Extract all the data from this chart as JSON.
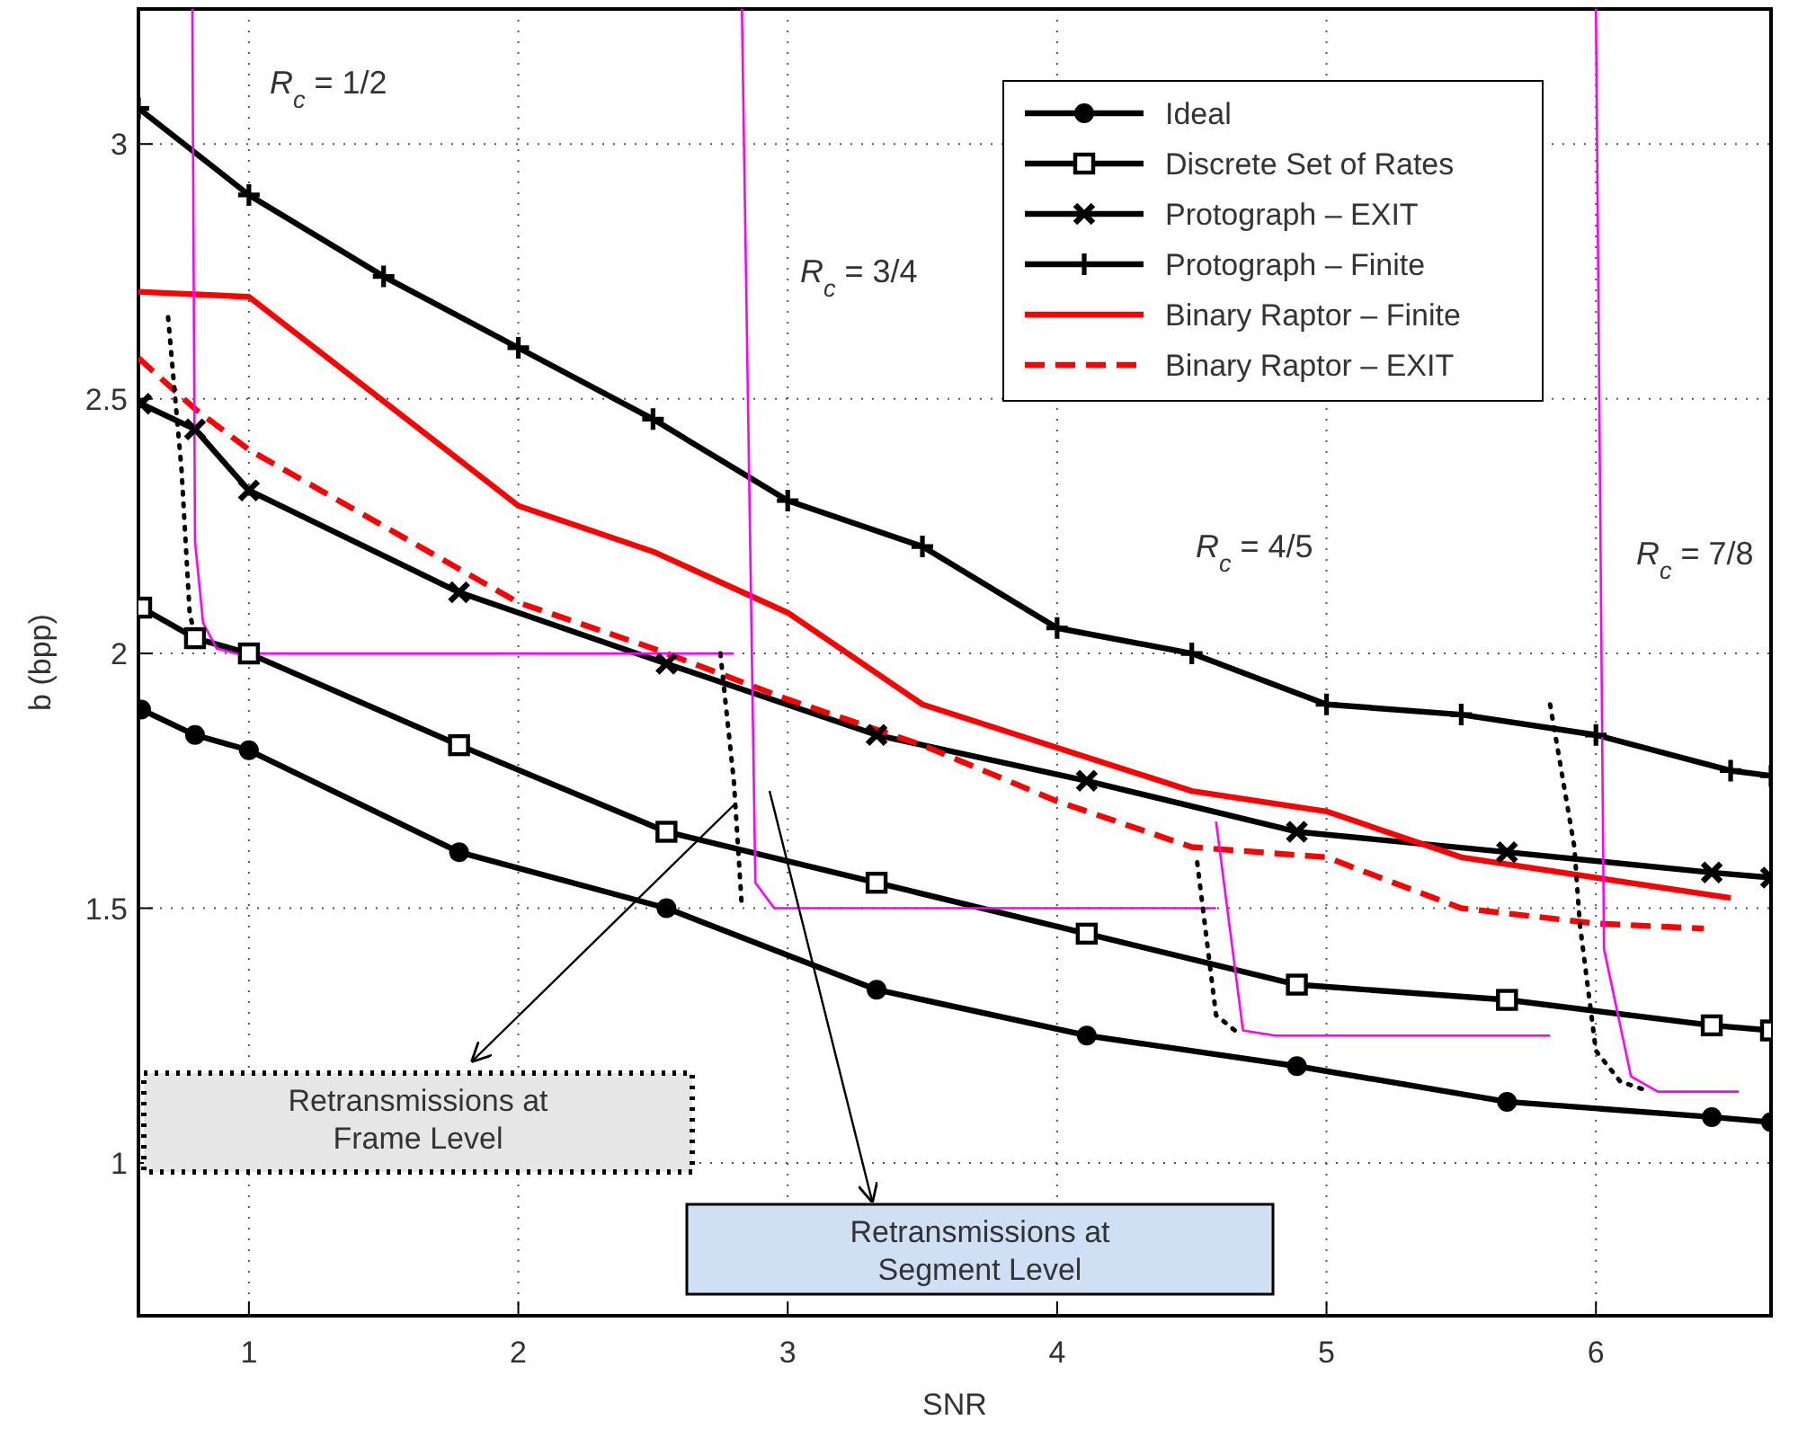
{
  "chart_data": {
    "type": "line",
    "xlabel": "SNR",
    "ylabel": "b (bpp)",
    "xlim": [
      0.59,
      6.65
    ],
    "ylim": [
      0.7,
      3.265
    ],
    "xticks": [
      1,
      2,
      3,
      4,
      5,
      6
    ],
    "yticks": [
      1,
      1.5,
      2,
      2.5,
      3
    ],
    "grid": true,
    "legend": "top right",
    "series": [
      {
        "name": "Ideal",
        "color": "#000000",
        "marker": "circle",
        "line_style": "solid",
        "x": [
          0.6,
          0.8,
          1,
          1.78,
          2.55,
          3.33,
          4.11,
          4.89,
          5.67,
          6.43,
          6.65
        ],
        "values": [
          1.89,
          1.84,
          1.81,
          1.61,
          1.5,
          1.34,
          1.25,
          1.19,
          1.12,
          1.09,
          1.08
        ]
      },
      {
        "name": "Discrete Set of Rates",
        "color": "#000000",
        "marker": "square",
        "line_style": "solid",
        "x": [
          0.6,
          0.8,
          1,
          1.78,
          2.55,
          3.33,
          4.11,
          4.89,
          5.67,
          6.43,
          6.65
        ],
        "values": [
          2.09,
          2.03,
          2.0,
          1.82,
          1.65,
          1.55,
          1.45,
          1.35,
          1.32,
          1.27,
          1.26
        ]
      },
      {
        "name": "Protograph – EXIT",
        "color": "#000000",
        "marker": "cross",
        "line_style": "solid",
        "x": [
          0.6,
          0.8,
          1,
          1.78,
          2.55,
          3.33,
          4.11,
          4.89,
          5.67,
          6.43,
          6.65
        ],
        "values": [
          2.49,
          2.44,
          2.32,
          2.12,
          1.98,
          1.84,
          1.75,
          1.65,
          1.61,
          1.57,
          1.56
        ]
      },
      {
        "name": "Protograph – Finite",
        "color": "#000000",
        "marker": "cross",
        "line_style": "solid",
        "x": [
          0.59,
          1,
          1.5,
          2,
          2.5,
          3,
          3.5,
          4,
          4.5,
          5,
          5.5,
          6,
          6.5,
          6.65
        ],
        "values": [
          3.07,
          2.9,
          2.74,
          2.6,
          2.46,
          2.3,
          2.21,
          2.05,
          2.0,
          1.9,
          1.88,
          1.84,
          1.77,
          1.76
        ]
      },
      {
        "name": "Binary Raptor – Finite",
        "color": "#ff0000",
        "marker": "none",
        "line_style": "solid",
        "x": [
          0.59,
          1,
          2,
          2.5,
          3,
          3.5,
          4.5,
          5,
          5.5,
          6.5
        ],
        "values": [
          2.71,
          2.7,
          2.29,
          2.2,
          2.08,
          1.9,
          1.73,
          1.69,
          1.6,
          1.52
        ]
      },
      {
        "name": "Binary Raptor – EXIT",
        "color": "#ff0000",
        "marker": "none",
        "line_style": "dashed",
        "x": [
          0.59,
          0.8,
          1,
          2,
          2.5,
          3,
          3.5,
          4,
          4.5,
          5,
          5.5,
          6,
          6.4
        ],
        "values": [
          2.58,
          2.48,
          2.4,
          2.1,
          2.01,
          1.91,
          1.82,
          1.71,
          1.62,
          1.6,
          1.5,
          1.47,
          1.46
        ]
      },
      {
        "color": "#ff00ff",
        "marker": "none",
        "line_style": "solid",
        "x": [
          0.79,
          0.8,
          0.83,
          0.88,
          0.95,
          2.8
        ],
        "values": [
          3.265,
          2.22,
          2.06,
          2.01,
          2.0,
          2.0
        ]
      },
      {
        "color": "#ff00ff",
        "marker": "none",
        "line_style": "solid",
        "x": [
          2.83,
          2.88,
          2.95,
          4.59
        ],
        "values": [
          3.265,
          1.55,
          1.5,
          1.5
        ]
      },
      {
        "color": "#ff00ff",
        "marker": "none",
        "line_style": "solid",
        "x": [
          4.59,
          4.69,
          4.81,
          5.83
        ],
        "values": [
          1.67,
          1.26,
          1.25,
          1.25
        ]
      },
      {
        "color": "#ff00ff",
        "marker": "none",
        "line_style": "solid",
        "x": [
          6.0,
          6.03,
          6.13,
          6.23,
          6.53
        ],
        "values": [
          3.265,
          1.42,
          1.17,
          1.14,
          1.14
        ]
      },
      {
        "color": "#000000",
        "marker": "none",
        "line_style": "dotted",
        "x": [
          0.7,
          0.75,
          0.78,
          0.81
        ],
        "values": [
          2.66,
          2.36,
          2.08,
          2.01
        ]
      },
      {
        "color": "#000000",
        "marker": "none",
        "line_style": "dotted",
        "x": [
          2.75,
          2.8,
          2.83
        ],
        "values": [
          2.0,
          1.75,
          1.5
        ]
      },
      {
        "color": "#000000",
        "marker": "none",
        "line_style": "dotted",
        "x": [
          4.52,
          4.59,
          4.66
        ],
        "values": [
          1.59,
          1.29,
          1.26
        ]
      },
      {
        "color": "#000000",
        "marker": "none",
        "line_style": "dotted",
        "x": [
          5.83,
          5.92,
          5.94,
          6.0,
          6.09,
          6.2
        ],
        "values": [
          1.9,
          1.62,
          1.47,
          1.22,
          1.16,
          1.14
        ]
      }
    ],
    "annotations": [
      "R$_{c}$ = 1/2",
      "R$_{c}$ = 3/4",
      "R$_{c}$ = 4/5",
      "R$_{c}$ = 7/8",
      "Retransmissions at Frame Level",
      "Retransmissions at Segment Level"
    ]
  }
}
